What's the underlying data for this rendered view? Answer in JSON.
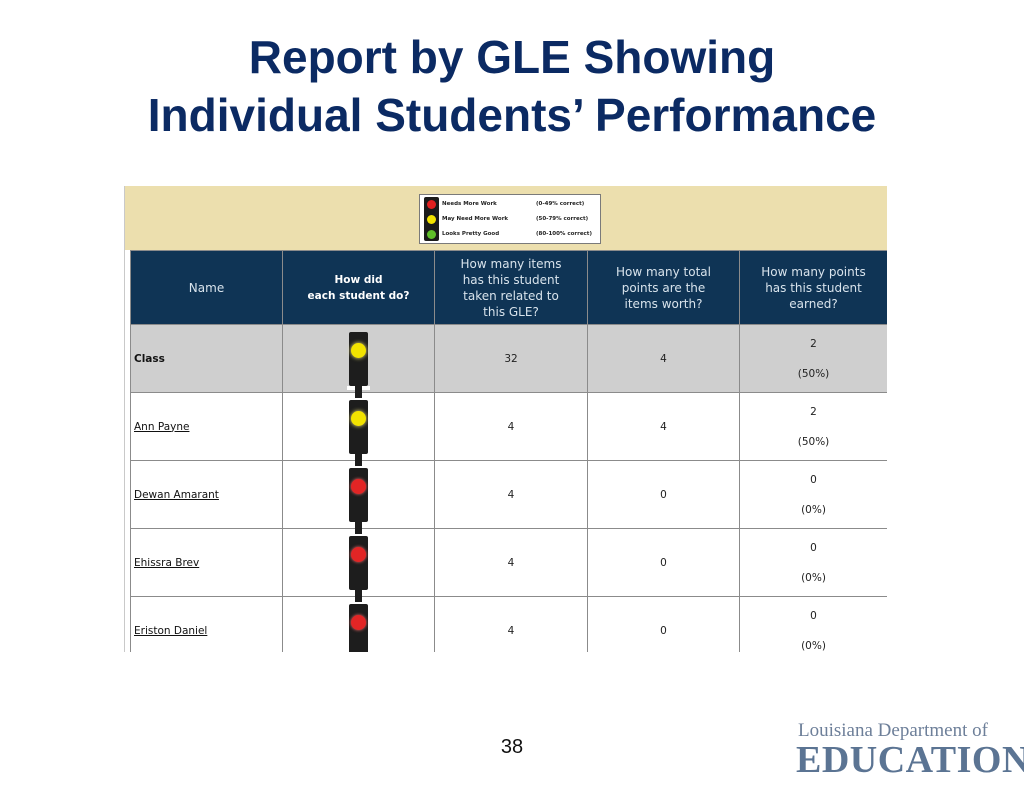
{
  "title": {
    "line1": "Report by GLE Showing",
    "line2": "Individual Students’ Performance"
  },
  "legend": {
    "items": [
      {
        "label": "Needs More Work",
        "range": "(0-49% correct)",
        "color": "#e02020"
      },
      {
        "label": "May Need More Work",
        "range": "(50-79% correct)",
        "color": "#f2e300"
      },
      {
        "label": "Looks Pretty Good",
        "range": "(80-100% correct)",
        "color": "#5fbf2a"
      }
    ]
  },
  "table": {
    "headers": {
      "name": "Name",
      "how_did_line1": "How did",
      "how_did_line2": "each student do?",
      "items_taken": "How many items has this student taken related to this GLE?",
      "total_points": "How many total points are the items worth?",
      "points_earned": "How many points has this student earned?"
    },
    "rows": [
      {
        "name": "Class",
        "light": "yellow-icon",
        "items": "32",
        "total": "4",
        "earned": "2",
        "pct": "(50%)"
      },
      {
        "name": "Ann Payne",
        "light": "yellow-icon",
        "items": "4",
        "total": "4",
        "earned": "2",
        "pct": "(50%)"
      },
      {
        "name": "Dewan Amarant",
        "light": "red-icon",
        "items": "4",
        "total": "0",
        "earned": "0",
        "pct": "(0%)"
      },
      {
        "name": "Ehissra Brev",
        "light": "red-icon",
        "items": "4",
        "total": "0",
        "earned": "0",
        "pct": "(0%)"
      },
      {
        "name": "Eriston Daniel",
        "light": "red-icon",
        "items": "4",
        "total": "0",
        "earned": "0",
        "pct": "(0%)"
      }
    ]
  },
  "footer": {
    "page_number": "38",
    "logo_line1": "Louisiana Department of",
    "logo_line2": "EDUCATION"
  }
}
